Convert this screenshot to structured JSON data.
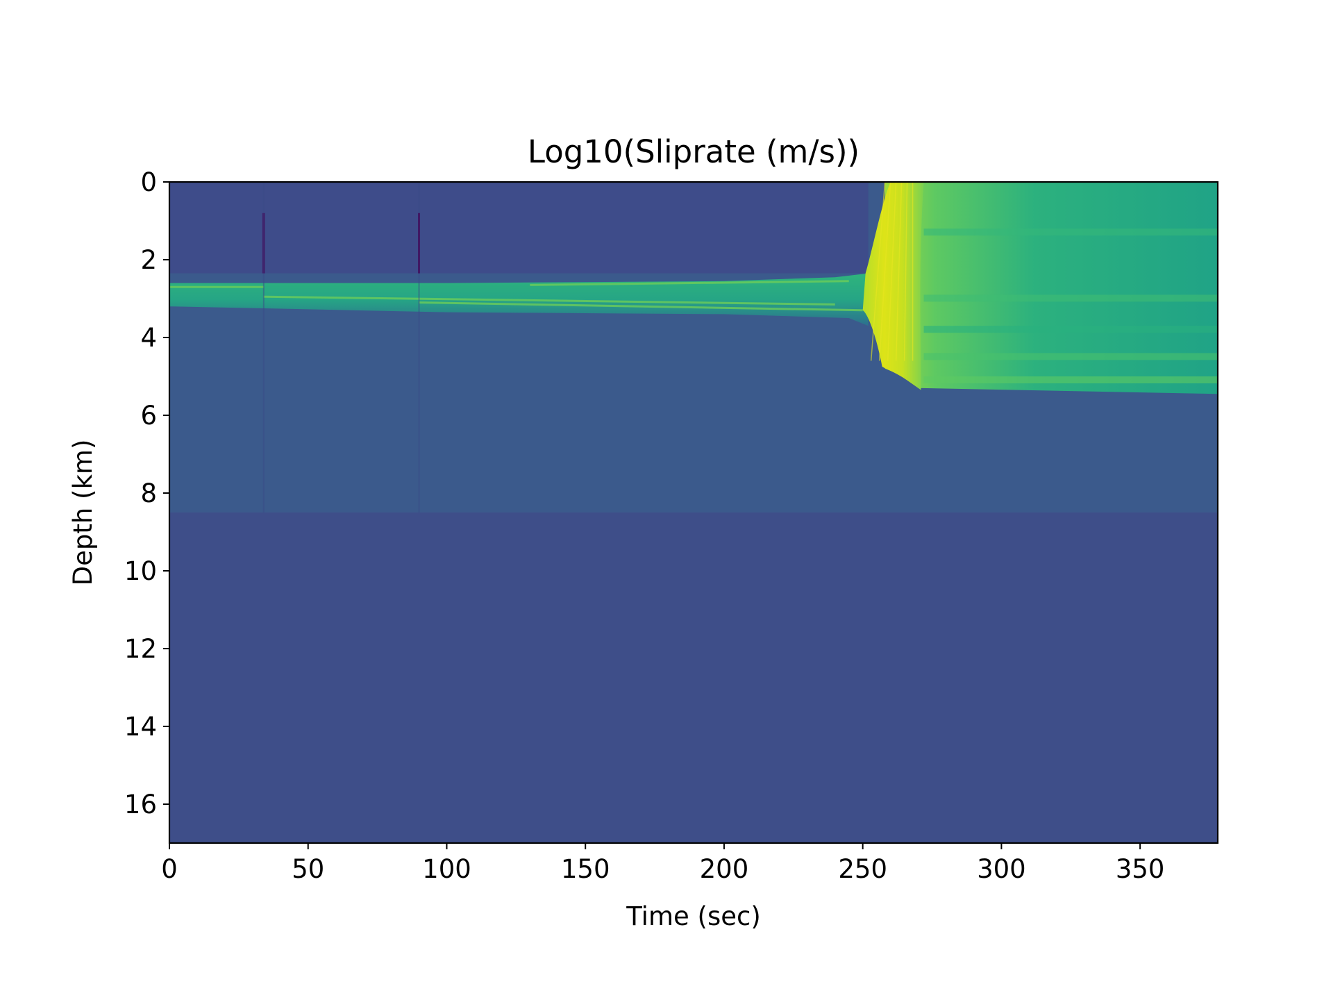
{
  "chart_data": {
    "type": "heatmap",
    "title": "Log10(Sliprate (m/s))",
    "xlabel": "Time (sec)",
    "ylabel": "Depth (km)",
    "xlim": [
      0,
      378
    ],
    "ylim": [
      17,
      0
    ],
    "y_inverted": true,
    "colormap": "viridis",
    "grid": false,
    "legend": "none",
    "x_ticks": [
      {
        "value": 0,
        "label": "0"
      },
      {
        "value": 50,
        "label": "50"
      },
      {
        "value": 100,
        "label": "100"
      },
      {
        "value": 150,
        "label": "150"
      },
      {
        "value": 200,
        "label": "200"
      },
      {
        "value": 250,
        "label": "250"
      },
      {
        "value": 300,
        "label": "300"
      },
      {
        "value": 350,
        "label": "350"
      }
    ],
    "y_ticks": [
      {
        "value": 0,
        "label": "0"
      },
      {
        "value": 2,
        "label": "2"
      },
      {
        "value": 4,
        "label": "4"
      },
      {
        "value": 6,
        "label": "6"
      },
      {
        "value": 8,
        "label": "8"
      },
      {
        "value": 10,
        "label": "10"
      },
      {
        "value": 12,
        "label": "12"
      },
      {
        "value": 14,
        "label": "14"
      },
      {
        "value": 16,
        "label": "16"
      }
    ],
    "regions": {
      "background_color": "#3e4e89",
      "creeping_zone": {
        "depth_range": [
          0,
          8.5
        ],
        "color": "#3b5a8c"
      },
      "shallow_locked_zone": {
        "depth_range": [
          0,
          2.35
        ],
        "time_range": [
          0,
          252
        ],
        "color": "#3e4c8a"
      },
      "slipping_band": {
        "color": "#26a385",
        "highlight_color": "#6ccd5a",
        "top_km": [
          [
            0,
            2.6
          ],
          [
            100,
            2.6
          ],
          [
            200,
            2.55
          ],
          [
            240,
            2.45
          ],
          [
            252,
            2.35
          ]
        ],
        "bottom_km": [
          [
            0,
            3.2
          ],
          [
            34,
            3.25
          ],
          [
            100,
            3.35
          ],
          [
            200,
            3.4
          ],
          [
            245,
            3.5
          ],
          [
            252,
            3.7
          ]
        ]
      },
      "rupture_front": {
        "color": "#d2e21b",
        "time_range": [
          250,
          272
        ],
        "depth_range": [
          0,
          5.4
        ]
      },
      "postseismic_zone": {
        "time_range": [
          265,
          378
        ],
        "depth_range": [
          0,
          5.4
        ],
        "color": "#21a585",
        "bottom_km": [
          [
            258,
            4.8
          ],
          [
            265,
            5.0
          ],
          [
            270,
            5.3
          ],
          [
            378,
            5.45
          ]
        ]
      },
      "vertical_artifacts": [
        {
          "time": 34,
          "depth_range": [
            0.8,
            2.35
          ],
          "color": "#440154"
        },
        {
          "time": 90,
          "depth_range": [
            0.8,
            2.35
          ],
          "color": "#440154"
        }
      ]
    }
  }
}
